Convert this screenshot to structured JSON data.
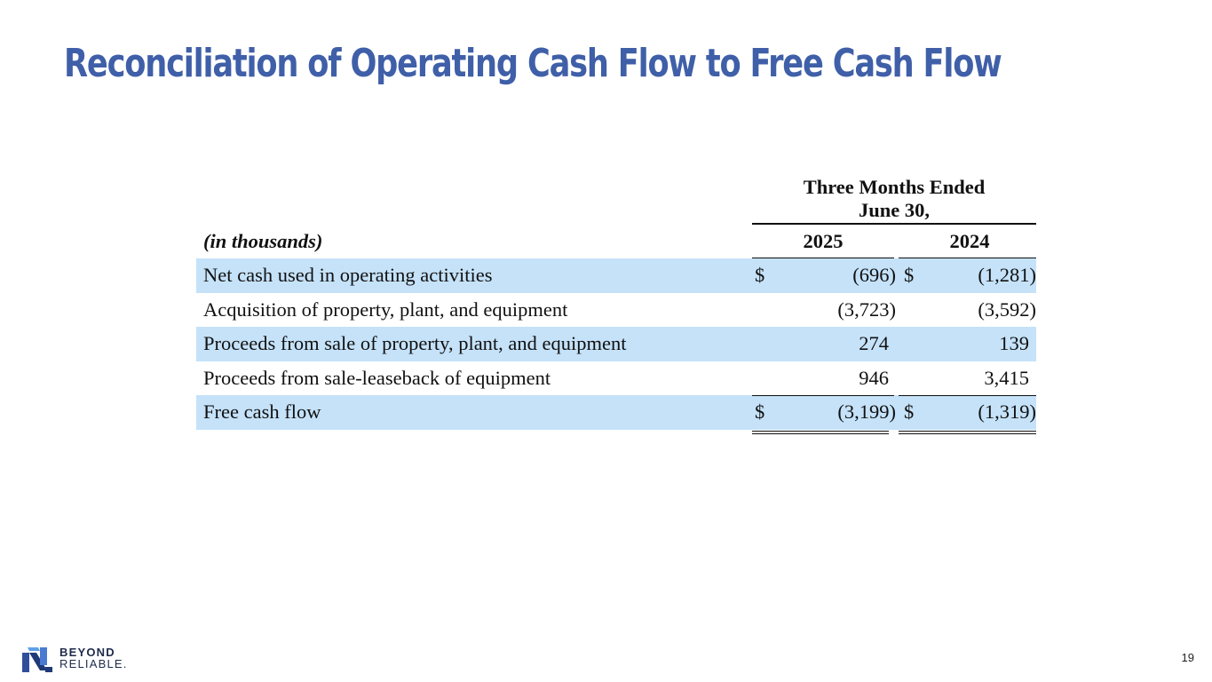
{
  "title": "Reconciliation of Operating Cash Flow to Free Cash Flow",
  "colors": {
    "title": "#3f5fa8",
    "row_shade": "#c5e2f9"
  },
  "table": {
    "period_header_line1": "Three Months Ended",
    "period_header_line2": "June 30,",
    "units_label": "(in thousands)",
    "years": [
      "2025",
      "2024"
    ],
    "rows": [
      {
        "label": "Net cash used in operating activities",
        "dollar_sign": "$",
        "value_2025": "(696)",
        "value_2024": "(1,281)"
      },
      {
        "label": "Acquisition of property, plant, and equipment",
        "value_2025": "(3,723)",
        "value_2024": "(3,592)"
      },
      {
        "label": "Proceeds from sale of property, plant, and equipment",
        "value_2025": "274",
        "value_2024": "139"
      },
      {
        "label": "Proceeds from sale-leaseback of equipment",
        "value_2025": "946",
        "value_2024": "3,415"
      },
      {
        "label": "Free cash flow",
        "dollar_sign": "$",
        "value_2025": "(3,199)",
        "value_2024": "(1,319)"
      }
    ]
  },
  "footer": {
    "logo_line1": "BEYOND",
    "logo_line2": "RELIABLE.",
    "logo_icon": "n-logo-icon",
    "page_number": "19"
  }
}
